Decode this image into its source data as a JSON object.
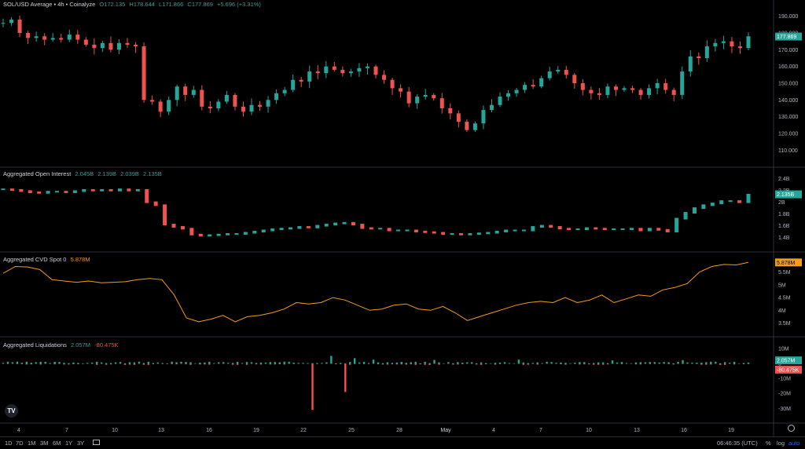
{
  "header": {
    "symbol": "SOL/USD Average • 4h • Coinalyze",
    "open": "O172.135",
    "high": "H178.644",
    "low": "L171.866",
    "close": "C177.869",
    "change": "+5.696 (+3.31%)"
  },
  "panes": {
    "oi": {
      "title": "Aggregated Open Interest",
      "v1": "2.045B",
      "v2": "2.139B",
      "v3": "2.039B",
      "v4": "2.135B"
    },
    "cvd": {
      "title": "Aggregated CVD Spot 0",
      "v1": "5.878M"
    },
    "liq": {
      "title": "Aggregated Liquidations",
      "v1": "2.057M",
      "v2": "-80.475K"
    }
  },
  "chart_data": [
    {
      "type": "candlestick",
      "name": "price",
      "x": [
        "4",
        "7",
        "10",
        "13",
        "16",
        "19",
        "22",
        "25",
        "28",
        "May",
        "4",
        "7",
        "10",
        "13",
        "16",
        "19"
      ],
      "y_ticks": [
        "190.000",
        "180.000",
        "170.000",
        "160.000",
        "150.000",
        "140.000",
        "130.000",
        "120.000",
        "110.000"
      ],
      "ylim": [
        105,
        195
      ],
      "last_value_label": "177.869",
      "close_path": [
        186,
        188,
        180,
        177,
        178,
        176,
        177,
        176,
        179,
        176,
        173,
        171,
        174,
        170,
        174,
        173,
        172,
        140,
        139,
        133,
        140,
        148,
        143,
        146,
        136,
        135,
        139,
        143,
        136,
        133,
        137,
        136,
        140,
        144,
        146,
        152,
        151,
        157,
        156,
        160,
        158,
        156,
        157,
        159,
        160,
        155,
        152,
        147,
        145,
        138,
        142,
        143,
        141,
        135,
        132,
        127,
        122,
        126,
        134,
        137,
        142,
        144,
        146,
        149,
        148,
        153,
        157,
        158,
        155,
        150,
        146,
        144,
        143,
        148,
        146,
        147,
        146,
        143,
        147,
        150,
        146,
        143,
        157,
        166,
        165,
        172,
        174,
        175,
        172,
        171,
        178
      ]
    },
    {
      "type": "line",
      "name": "open-interest",
      "y_ticks": [
        "2.4B",
        "2.2B",
        "2B",
        "1.8B",
        "1.6B",
        "1.4B"
      ],
      "ylim": [
        1.3,
        2.45
      ],
      "last_value_label": "2.135B",
      "values": [
        2.22,
        2.21,
        2.19,
        2.17,
        2.16,
        2.18,
        2.18,
        2.17,
        2.19,
        2.21,
        2.2,
        2.21,
        2.2,
        2.22,
        2.2,
        2.21,
        2.0,
        1.95,
        1.62,
        1.58,
        1.55,
        1.45,
        1.43,
        1.44,
        1.45,
        1.46,
        1.46,
        1.48,
        1.5,
        1.52,
        1.54,
        1.55,
        1.56,
        1.58,
        1.57,
        1.6,
        1.62,
        1.64,
        1.65,
        1.62,
        1.56,
        1.55,
        1.55,
        1.52,
        1.52,
        1.52,
        1.5,
        1.49,
        1.48,
        1.46,
        1.46,
        1.45,
        1.46,
        1.47,
        1.48,
        1.5,
        1.52,
        1.52,
        1.52,
        1.58,
        1.6,
        1.58,
        1.55,
        1.54,
        1.54,
        1.56,
        1.55,
        1.54,
        1.54,
        1.54,
        1.55,
        1.52,
        1.55,
        1.53,
        1.5,
        1.72,
        1.82,
        1.9,
        1.95,
        1.98,
        2.02,
        2.02,
        2.0,
        2.13
      ]
    },
    {
      "type": "line",
      "name": "cvd-spot",
      "y_ticks": [
        "5.5M",
        "5M",
        "4.5M",
        "4M",
        "3.5M"
      ],
      "ylim": [
        3.3,
        5.95
      ],
      "last_value_label": "5.878M",
      "values": [
        5.45,
        5.72,
        5.7,
        5.6,
        5.2,
        5.15,
        5.1,
        5.15,
        5.08,
        5.1,
        5.12,
        5.2,
        5.25,
        5.2,
        4.6,
        3.7,
        3.55,
        3.65,
        3.8,
        3.55,
        3.75,
        3.8,
        3.9,
        4.05,
        4.3,
        4.25,
        4.3,
        4.5,
        4.4,
        4.2,
        4.0,
        4.05,
        4.2,
        4.25,
        4.05,
        4.0,
        4.15,
        3.9,
        3.6,
        3.75,
        3.9,
        4.05,
        4.2,
        4.3,
        4.35,
        4.3,
        4.5,
        4.3,
        4.4,
        4.6,
        4.3,
        4.45,
        4.6,
        4.55,
        4.8,
        4.9,
        5.05,
        5.5,
        5.72,
        5.8,
        5.78,
        5.88
      ]
    },
    {
      "type": "bar",
      "name": "liquidations",
      "y_ticks": [
        "10M",
        "0",
        "-10M",
        "-20M",
        "-30M"
      ],
      "ylim": [
        -34,
        12
      ],
      "last_value_labels": [
        "2.057M",
        "-80.475K"
      ]
    }
  ],
  "time_axis": [
    "4",
    "7",
    "10",
    "13",
    "16",
    "19",
    "22",
    "25",
    "28",
    "May",
    "4",
    "7",
    "10",
    "13",
    "16",
    "19"
  ],
  "bottom": {
    "ranges": [
      "1D",
      "7D",
      "1M",
      "3M",
      "6M",
      "1Y",
      "3Y"
    ],
    "time": "06:46:35 (UTC)",
    "pct": "%",
    "log": "log",
    "auto": "auto"
  },
  "colors": {
    "up": "#26a69a",
    "down": "#ef5350",
    "cvd": "#f59c1a",
    "grid": "#2a2e39",
    "bg": "#000000"
  }
}
